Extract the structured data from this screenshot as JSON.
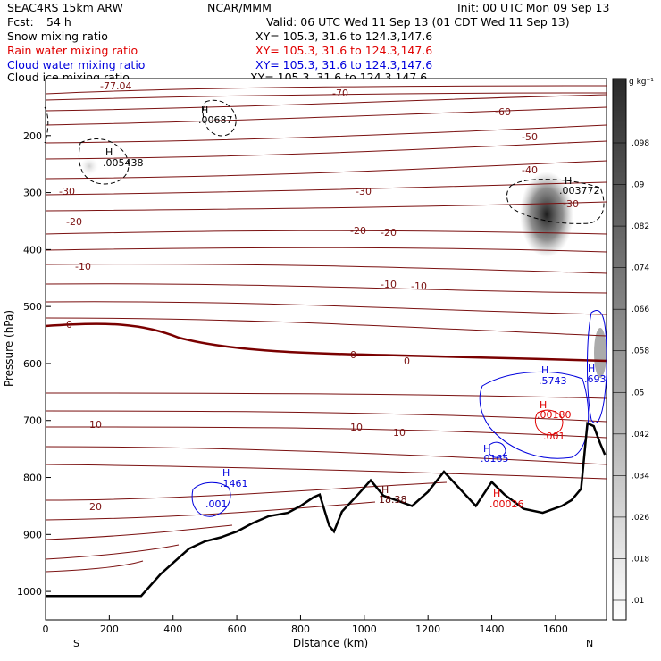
{
  "header": {
    "model": "SEAC4RS 15km ARW",
    "org": "NCAR/MMM",
    "init": "Init: 00 UTC Mon 09 Sep 13",
    "fcst_label": "Fcst:",
    "fcst_value": "54 h",
    "valid": "Valid: 06 UTC Wed 11 Sep 13 (01 CDT Wed 11 Sep 13)"
  },
  "fields": [
    {
      "name": "Snow mixing ratio",
      "xy": "XY= 105.3, 31.6 to 124.3,147.6",
      "color": "#000000"
    },
    {
      "name": "Rain water mixing ratio",
      "xy": "XY= 105.3, 31.6 to 124.3,147.6",
      "color": "#e00000"
    },
    {
      "name": "Cloud water mixing ratio",
      "xy": "XY= 105.3, 31.6 to 124.3,147.6",
      "color": "#0000dd"
    },
    {
      "name": "Cloud ice mixing ratio",
      "xy": "XY= 105.3, 31.6 to 124.3,147.6",
      "color": "#000000"
    }
  ],
  "colorbar": {
    "unit": "g kg⁻¹",
    "labels": [
      ".01",
      ".018",
      ".026",
      ".034",
      ".042",
      ".05",
      ".058",
      ".066",
      ".074",
      ".082",
      ".09",
      ".098"
    ]
  },
  "chart_data": {
    "type": "contour cross-section",
    "xlabel": "Distance (km)",
    "ylabel": "Pressure (hPa)",
    "xlim": [
      0,
      1760
    ],
    "ylim": [
      1050,
      100
    ],
    "x_ticks": [
      0,
      200,
      400,
      600,
      800,
      1000,
      1200,
      1400,
      1600
    ],
    "y_ticks": [
      200,
      300,
      400,
      500,
      600,
      700,
      800,
      900,
      1000
    ],
    "x_end_labels": {
      "left": "S",
      "right": "N"
    },
    "temperature_labels": [
      "-77.04",
      "-70",
      "-60",
      "-50",
      "-40",
      "-30",
      "-30",
      "-30",
      "-20",
      "-20",
      "-20",
      "-10",
      "-10",
      "-10",
      "0",
      "0",
      "0",
      "10",
      "10",
      "10",
      "20",
      "18.38"
    ],
    "maxima_labels": [
      {
        "mark": "H",
        "value": ".00687",
        "color": "#000000"
      },
      {
        "mark": "H",
        "value": ".005438",
        "color": "#000000"
      },
      {
        "mark": "H",
        "value": ".003772",
        "color": "#000000"
      },
      {
        "mark": "H",
        "value": ".1461",
        "color": "#0000dd"
      },
      {
        "mark": "",
        "value": ".001",
        "color": "#0000dd"
      },
      {
        "mark": "H",
        "value": ".0165",
        "color": "#0000dd"
      },
      {
        "mark": "H",
        "value": ".5743",
        "color": "#0000dd"
      },
      {
        "mark": "H",
        "value": ".693",
        "color": "#0000dd"
      },
      {
        "mark": "H",
        "value": ".00180",
        "color": "#e00000"
      },
      {
        "mark": "",
        "value": ".001",
        "color": "#e00000"
      },
      {
        "mark": "H",
        "value": ".00026",
        "color": "#e00000"
      },
      {
        "mark": "H",
        "value": "18.38",
        "color": "#5a0000"
      }
    ],
    "terrain_pressure": [
      [
        0,
        1008
      ],
      [
        300,
        1008
      ],
      [
        360,
        970
      ],
      [
        400,
        950
      ],
      [
        450,
        925
      ],
      [
        500,
        912
      ],
      [
        550,
        905
      ],
      [
        600,
        895
      ],
      [
        650,
        880
      ],
      [
        700,
        868
      ],
      [
        760,
        862
      ],
      [
        800,
        850
      ],
      [
        840,
        835
      ],
      [
        860,
        830
      ],
      [
        890,
        885
      ],
      [
        905,
        895
      ],
      [
        930,
        860
      ],
      [
        980,
        830
      ],
      [
        1020,
        805
      ],
      [
        1060,
        832
      ],
      [
        1100,
        840
      ],
      [
        1150,
        850
      ],
      [
        1200,
        825
      ],
      [
        1250,
        790
      ],
      [
        1300,
        820
      ],
      [
        1350,
        850
      ],
      [
        1400,
        808
      ],
      [
        1440,
        830
      ],
      [
        1500,
        855
      ],
      [
        1560,
        862
      ],
      [
        1620,
        850
      ],
      [
        1650,
        840
      ],
      [
        1680,
        820
      ],
      [
        1700,
        705
      ],
      [
        1720,
        710
      ],
      [
        1740,
        740
      ],
      [
        1755,
        760
      ]
    ]
  }
}
